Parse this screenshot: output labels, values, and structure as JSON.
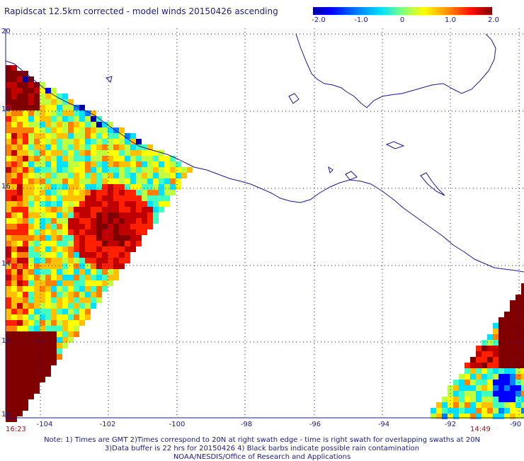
{
  "title": "Rapidscat 12.5km corrected - model winds 20150426 ascending",
  "colorbar": {
    "ticks": [
      "-2.0",
      "-1.0",
      "0",
      "1.0",
      "2.0"
    ],
    "colors": [
      "#0000a0",
      "#0000ff",
      "#0080ff",
      "#00e0ff",
      "#40ffc0",
      "#c0ff40",
      "#ffff00",
      "#ffc000",
      "#ff8000",
      "#ff2000",
      "#c00000",
      "#800000"
    ]
  },
  "lat_labels": [
    "20",
    "18",
    "16",
    "14",
    "12",
    "10"
  ],
  "lon_labels": [
    "-104",
    "-102",
    "-100",
    "-98",
    "-96",
    "-94",
    "-92",
    "-90"
  ],
  "times": {
    "left": "16:23",
    "right": "14:49"
  },
  "notes": [
    "Note: 1) Times are GMT 2)Times correspond to 20N at right swath edge - time is right swath for overlapping swaths at 20N",
    "3)Data buffer is 22 hrs for 20150426 4) Black barbs indicate possible rain contamination",
    "NOAA/NESDIS/Office of Research and Applications"
  ],
  "colors": {
    "label": "#1a1a8c",
    "time": "#8b1a1a",
    "grid": "#1a1a8c",
    "coast": "#1a1a8c"
  }
}
